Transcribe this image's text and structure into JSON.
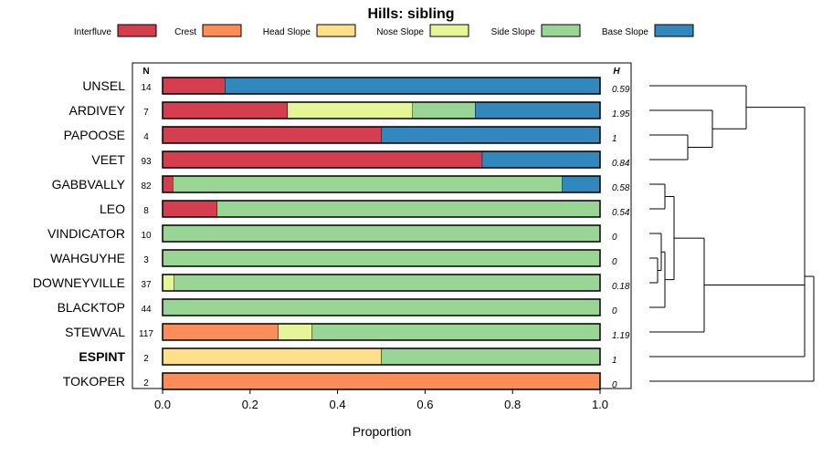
{
  "chart_data": {
    "type": "bar",
    "orientation": "horizontal",
    "stacked": true,
    "title": "Hills: sibling",
    "xlabel": "Proportion",
    "ylabel": "",
    "xlim": [
      0,
      1
    ],
    "xticks": [
      "0.0",
      "0.2",
      "0.4",
      "0.6",
      "0.8",
      "1.0"
    ],
    "n_header": "N",
    "h_header": "H",
    "series_colors": {
      "Interfluve": "#d53e4f",
      "Crest": "#fc8d59",
      "Head Slope": "#fee08b",
      "Nose Slope": "#e6f598",
      "Side Slope": "#99d594",
      "Base Slope": "#3288bd"
    },
    "legend": [
      "Interfluve",
      "Crest",
      "Head Slope",
      "Nose Slope",
      "Side Slope",
      "Base Slope"
    ],
    "rows": [
      {
        "name": "UNSEL",
        "n": "14",
        "h": "0.59",
        "bold": false,
        "segments": [
          {
            "series": "Interfluve",
            "value": 0.143
          },
          {
            "series": "Base Slope",
            "value": 0.857
          }
        ]
      },
      {
        "name": "ARDIVEY",
        "n": "7",
        "h": "1.95",
        "bold": false,
        "segments": [
          {
            "series": "Interfluve",
            "value": 0.286
          },
          {
            "series": "Nose Slope",
            "value": 0.286
          },
          {
            "series": "Side Slope",
            "value": 0.143
          },
          {
            "series": "Base Slope",
            "value": 0.285
          }
        ]
      },
      {
        "name": "PAPOOSE",
        "n": "4",
        "h": "1",
        "bold": false,
        "segments": [
          {
            "series": "Interfluve",
            "value": 0.5
          },
          {
            "series": "Base Slope",
            "value": 0.5
          }
        ]
      },
      {
        "name": "VEET",
        "n": "93",
        "h": "0.84",
        "bold": false,
        "segments": [
          {
            "series": "Interfluve",
            "value": 0.731
          },
          {
            "series": "Base Slope",
            "value": 0.269
          }
        ]
      },
      {
        "name": "GABBVALLY",
        "n": "82",
        "h": "0.58",
        "bold": false,
        "segments": [
          {
            "series": "Interfluve",
            "value": 0.024
          },
          {
            "series": "Side Slope",
            "value": 0.89
          },
          {
            "series": "Base Slope",
            "value": 0.086
          }
        ]
      },
      {
        "name": "LEO",
        "n": "8",
        "h": "0.54",
        "bold": false,
        "segments": [
          {
            "series": "Interfluve",
            "value": 0.125
          },
          {
            "series": "Side Slope",
            "value": 0.875
          }
        ]
      },
      {
        "name": "VINDICATOR",
        "n": "10",
        "h": "0",
        "bold": false,
        "segments": [
          {
            "series": "Side Slope",
            "value": 1.0
          }
        ]
      },
      {
        "name": "WAHGUYHE",
        "n": "3",
        "h": "0",
        "bold": false,
        "segments": [
          {
            "series": "Side Slope",
            "value": 1.0
          }
        ]
      },
      {
        "name": "DOWNEYVILLE",
        "n": "37",
        "h": "0.18",
        "bold": false,
        "segments": [
          {
            "series": "Nose Slope",
            "value": 0.027
          },
          {
            "series": "Side Slope",
            "value": 0.973
          }
        ]
      },
      {
        "name": "BLACKTOP",
        "n": "44",
        "h": "0",
        "bold": false,
        "segments": [
          {
            "series": "Side Slope",
            "value": 1.0
          }
        ]
      },
      {
        "name": "STEWVAL",
        "n": "117",
        "h": "1.19",
        "bold": false,
        "segments": [
          {
            "series": "Crest",
            "value": 0.265
          },
          {
            "series": "Nose Slope",
            "value": 0.077
          },
          {
            "series": "Side Slope",
            "value": 0.658
          }
        ]
      },
      {
        "name": "ESPINT",
        "n": "2",
        "h": "1",
        "bold": true,
        "segments": [
          {
            "series": "Head Slope",
            "value": 0.5
          },
          {
            "series": "Side Slope",
            "value": 0.5
          }
        ]
      },
      {
        "name": "TOKOPER",
        "n": "2",
        "h": "0",
        "bold": false,
        "segments": [
          {
            "series": "Crest",
            "value": 1.0
          }
        ]
      }
    ],
    "dendrogram": {
      "description": "hierarchical clustering of rows",
      "tree": [
        [
          [
            [
              0,
              [
                1,
                [
                  2,
                  3
                ]
              ]
            ],
            [
              [
                [
                  4,
                  5
                ],
                [
                  [
                    6,
                    [
                      7,
                      8
                    ]
                  ],
                  9
                ]
              ],
              10
            ]
          ],
          11
        ],
        12
      ]
    }
  }
}
